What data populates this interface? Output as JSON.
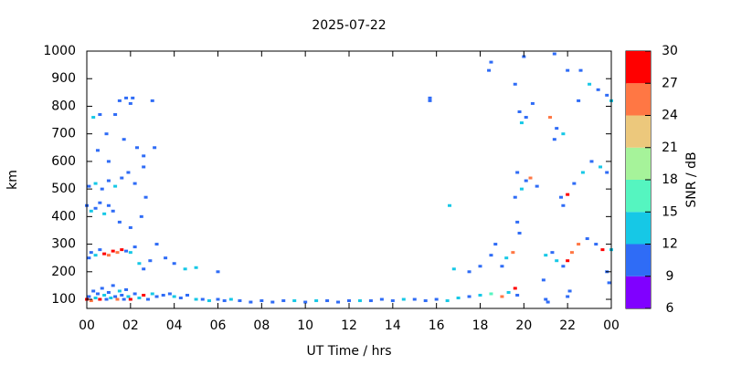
{
  "chart_data": {
    "type": "scatter",
    "title": "2025-07-22",
    "x_label": "UT Time / hrs",
    "y_label": "km",
    "xlim": [
      0,
      24
    ],
    "xticks": [
      {
        "value": 0,
        "label": "00"
      },
      {
        "value": 2,
        "label": "02"
      },
      {
        "value": 4,
        "label": "04"
      },
      {
        "value": 6,
        "label": "06"
      },
      {
        "value": 8,
        "label": "08"
      },
      10,
      12,
      14,
      16,
      18,
      20,
      22,
      {
        "value": 24,
        "label": "00"
      }
    ],
    "ylim": [
      67,
      1000
    ],
    "yticks": [
      100,
      200,
      300,
      400,
      500,
      600,
      700,
      800,
      900,
      1000
    ],
    "x": [
      0.0,
      0.1,
      0.2,
      0.3,
      0.4,
      0.5,
      0.6,
      0.7,
      0.8,
      0.9,
      1.0,
      1.1,
      1.2,
      1.3,
      1.4,
      1.5,
      1.6,
      1.7,
      1.8,
      1.9,
      2.0,
      2.2,
      2.4,
      2.6,
      2.8,
      3.0,
      3.2,
      3.5,
      3.8,
      4.0,
      4.3,
      4.6,
      5.0,
      5.3,
      5.6,
      6.0,
      6.3,
      6.6,
      7.0,
      7.5,
      8.0,
      8.5,
      9.0,
      9.5,
      10.0,
      10.5,
      11.0,
      11.5,
      12.0,
      12.5,
      13.0,
      13.5,
      14.0,
      14.5,
      15.0,
      15.5,
      16.0,
      16.5,
      17.0,
      17.5,
      18.0,
      18.5,
      19.0,
      19.3,
      19.6,
      19.7,
      0.1,
      0.2,
      0.4,
      0.6,
      0.8,
      1.0,
      1.2,
      1.4,
      1.6,
      1.8,
      2.0,
      2.2,
      2.4,
      2.6,
      2.9,
      3.2,
      3.6,
      4.0,
      4.5,
      5.0,
      6.0,
      0.0,
      0.2,
      0.4,
      0.6,
      0.8,
      1.0,
      1.2,
      1.5,
      2.0,
      2.5,
      2.7,
      0.1,
      0.4,
      0.7,
      1.0,
      1.3,
      1.6,
      1.9,
      2.2,
      2.6,
      0.3,
      0.6,
      1.3,
      1.5,
      1.8,
      2.0,
      2.1,
      3.0,
      0.5,
      1.0,
      1.7,
      2.3,
      3.1,
      2.6,
      0.9,
      15.7,
      15.7,
      16.6,
      16.8,
      17.5,
      18.0,
      18.5,
      18.7,
      19.0,
      19.2,
      19.5,
      19.7,
      19.8,
      19.6,
      19.9,
      20.1,
      20.3,
      20.6,
      19.7,
      19.8,
      19.9,
      20.1,
      20.4,
      20.0,
      19.6,
      18.4,
      18.5,
      21.0,
      21.3,
      21.5,
      21.8,
      22.0,
      22.2,
      22.5,
      22.9,
      23.3,
      23.6,
      24.0,
      23.8,
      23.9,
      21.8,
      22.0,
      21.7,
      22.3,
      22.7,
      23.1,
      23.5,
      23.8,
      21.2,
      21.5,
      21.8,
      21.4,
      22.5,
      22.0,
      21.4,
      22.6,
      23.0,
      23.4,
      23.8,
      24.0,
      21.0,
      21.1,
      22.0,
      22.1,
      20.9
    ],
    "y": [
      100,
      110,
      95,
      130,
      105,
      120,
      100,
      140,
      115,
      100,
      125,
      105,
      150,
      110,
      100,
      130,
      115,
      100,
      135,
      110,
      100,
      120,
      105,
      115,
      100,
      120,
      110,
      115,
      120,
      110,
      105,
      115,
      100,
      100,
      95,
      100,
      95,
      100,
      95,
      90,
      95,
      90,
      95,
      95,
      90,
      95,
      95,
      90,
      95,
      95,
      95,
      100,
      95,
      100,
      100,
      95,
      100,
      95,
      105,
      110,
      115,
      120,
      110,
      125,
      140,
      115,
      250,
      270,
      260,
      280,
      265,
      260,
      275,
      270,
      280,
      275,
      270,
      290,
      230,
      210,
      240,
      300,
      250,
      230,
      210,
      215,
      200,
      440,
      420,
      430,
      450,
      410,
      440,
      420,
      380,
      360,
      400,
      470,
      510,
      520,
      500,
      530,
      510,
      540,
      560,
      520,
      580,
      760,
      770,
      770,
      820,
      830,
      810,
      830,
      820,
      640,
      600,
      680,
      650,
      650,
      620,
      700,
      830,
      820,
      440,
      210,
      200,
      220,
      260,
      300,
      220,
      250,
      270,
      380,
      340,
      470,
      500,
      530,
      540,
      510,
      560,
      780,
      740,
      760,
      810,
      980,
      880,
      930,
      960,
      260,
      270,
      240,
      220,
      240,
      270,
      300,
      320,
      300,
      280,
      280,
      200,
      160,
      440,
      480,
      470,
      520,
      560,
      600,
      580,
      560,
      760,
      720,
      700,
      680,
      820,
      930,
      990,
      930,
      880,
      860,
      840,
      820,
      100,
      90,
      110,
      130,
      170
    ],
    "snr": [
      28,
      10,
      25,
      10,
      13,
      10,
      28,
      10,
      13,
      10,
      10,
      13,
      10,
      10,
      25,
      13,
      10,
      10,
      10,
      13,
      28,
      10,
      13,
      28,
      10,
      13,
      10,
      10,
      10,
      13,
      10,
      10,
      13,
      10,
      13,
      10,
      10,
      13,
      10,
      10,
      10,
      10,
      10,
      13,
      10,
      13,
      10,
      10,
      10,
      13,
      10,
      10,
      10,
      13,
      10,
      10,
      10,
      13,
      13,
      10,
      13,
      16,
      25,
      13,
      28,
      10,
      10,
      10,
      13,
      10,
      28,
      25,
      28,
      25,
      28,
      10,
      13,
      10,
      13,
      10,
      10,
      10,
      10,
      10,
      13,
      13,
      10,
      10,
      13,
      10,
      10,
      13,
      10,
      10,
      10,
      10,
      10,
      10,
      10,
      13,
      10,
      10,
      13,
      10,
      10,
      10,
      10,
      13,
      10,
      10,
      10,
      10,
      10,
      10,
      10,
      10,
      10,
      10,
      10,
      10,
      10,
      10,
      10,
      10,
      13,
      13,
      10,
      10,
      10,
      10,
      10,
      13,
      25,
      10,
      10,
      10,
      13,
      10,
      25,
      10,
      10,
      10,
      13,
      10,
      10,
      10,
      10,
      10,
      10,
      13,
      10,
      13,
      10,
      28,
      25,
      25,
      10,
      10,
      28,
      13,
      10,
      10,
      10,
      28,
      10,
      10,
      13,
      10,
      13,
      10,
      25,
      10,
      13,
      10,
      10,
      10,
      10,
      10,
      13,
      10,
      10,
      13,
      10,
      10,
      10,
      10,
      10
    ],
    "colorbar": {
      "label": "SNR / dB",
      "lim": [
        6,
        30
      ],
      "ticks": [
        6,
        9,
        12,
        15,
        18,
        21,
        24,
        27,
        30
      ],
      "colors": [
        "#8000ff",
        "#2f6cf6",
        "#16c8e6",
        "#55f5c0",
        "#a6f39a",
        "#ecc87c",
        "#ff7744",
        "#ff0000"
      ]
    }
  }
}
